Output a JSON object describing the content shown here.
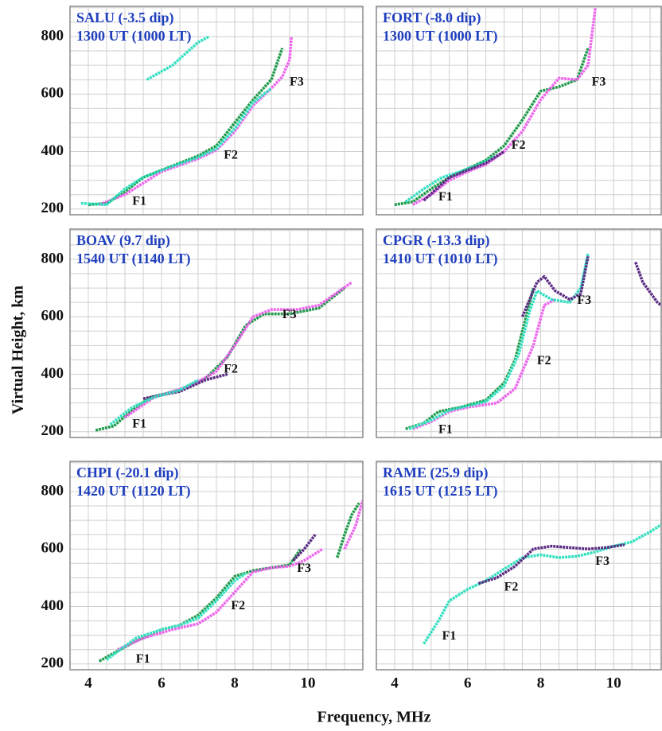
{
  "x_label": "Frequency, MHz",
  "y_label": "Virtual Height, km",
  "axes": {
    "xlim": [
      3.5,
      11.5
    ],
    "ylim": [
      180,
      905
    ],
    "xticks": [
      4,
      6,
      8,
      10
    ],
    "yticks": [
      200,
      400,
      600,
      800
    ],
    "xgrid": [
      3.5,
      4,
      4.5,
      5,
      5.5,
      6,
      6.5,
      7,
      7.5,
      8,
      8.5,
      9,
      9.5,
      10,
      10.5,
      11,
      11.5
    ],
    "ygrid": [
      200,
      250,
      300,
      350,
      400,
      450,
      500,
      550,
      600,
      650,
      700,
      750,
      800,
      850,
      900
    ]
  },
  "chart_data": [
    {
      "type": "line",
      "title": "SALU (-3.5 dip)",
      "subtitle": "1300 UT (1000 LT)",
      "series": [
        {
          "color": "#1f9a4a",
          "x": [
            4.0,
            4.5,
            5.0,
            5.5,
            6.0,
            6.5,
            7.0,
            7.5,
            8.0,
            8.5,
            9.0,
            9.3
          ],
          "values": [
            215,
            220,
            260,
            310,
            335,
            360,
            385,
            420,
            500,
            580,
            650,
            760
          ]
        },
        {
          "color": "#ee66ee",
          "x": [
            4.3,
            5,
            6,
            7,
            7.5,
            8,
            8.5,
            9,
            9.3,
            9.5,
            9.55
          ],
          "values": [
            215,
            250,
            330,
            375,
            405,
            470,
            560,
            620,
            660,
            720,
            800
          ]
        },
        {
          "color": "#33e0c0",
          "x": [
            3.8,
            4.5,
            5,
            5.5,
            6,
            7,
            7.5,
            8,
            8.5,
            9
          ],
          "values": [
            220,
            215,
            270,
            310,
            335,
            380,
            410,
            480,
            570,
            620
          ]
        },
        {
          "color": "#33e0c0",
          "x": [
            5.6,
            6.3,
            7,
            7.3
          ],
          "values": [
            650,
            700,
            780,
            800
          ]
        }
      ],
      "annotations": [
        {
          "text": "F1",
          "x": 5.2,
          "y": 225
        },
        {
          "text": "F2",
          "x": 7.7,
          "y": 385
        },
        {
          "text": "F3",
          "x": 9.5,
          "y": 640
        }
      ]
    },
    {
      "type": "line",
      "title": "FORT (-8.0 dip)",
      "subtitle": "1300 UT (1000 LT)",
      "series": [
        {
          "color": "#1f9a4a",
          "x": [
            4.0,
            4.5,
            5,
            5.5,
            6,
            6.5,
            7,
            7.5,
            8,
            8.5,
            9,
            9.3
          ],
          "values": [
            215,
            225,
            270,
            310,
            340,
            370,
            420,
            510,
            610,
            625,
            650,
            760
          ]
        },
        {
          "color": "#ee66ee",
          "x": [
            4.5,
            5,
            5.5,
            6,
            6.5,
            7,
            7.5,
            8,
            8.5,
            9,
            9.3,
            9.5
          ],
          "values": [
            215,
            250,
            300,
            330,
            355,
            400,
            470,
            580,
            655,
            650,
            700,
            900
          ]
        },
        {
          "color": "#33e0c0",
          "x": [
            4.3,
            4.8,
            5.3,
            5.8,
            6.3,
            6.8
          ],
          "values": [
            225,
            270,
            310,
            330,
            355,
            385
          ]
        },
        {
          "color": "#5b2c83",
          "x": [
            4.8,
            5.5,
            6.5,
            7.0
          ],
          "values": [
            230,
            310,
            360,
            400
          ]
        }
      ],
      "annotations": [
        {
          "text": "F1",
          "x": 5.2,
          "y": 240
        },
        {
          "text": "F2",
          "x": 7.2,
          "y": 420
        },
        {
          "text": "F3",
          "x": 9.4,
          "y": 640
        }
      ]
    },
    {
      "type": "line",
      "title": "BOAV (9.7 dip)",
      "subtitle": "1540 UT (1140 LT)",
      "series": [
        {
          "color": "#1f9a4a",
          "x": [
            4.2,
            4.7,
            5.2,
            5.7,
            6.5,
            7.2,
            7.8,
            8.3,
            8.8,
            9.5,
            10.3,
            11
          ],
          "values": [
            205,
            220,
            275,
            320,
            345,
            385,
            460,
            570,
            610,
            610,
            630,
            700
          ]
        },
        {
          "color": "#ee66ee",
          "x": [
            5,
            5.8,
            6.8,
            7.5,
            8,
            8.5,
            9,
            9.7,
            10.3,
            11.2
          ],
          "values": [
            250,
            320,
            360,
            410,
            500,
            600,
            625,
            625,
            640,
            720
          ]
        },
        {
          "color": "#5b2c83",
          "x": [
            5.5,
            6.5,
            7.2,
            7.8
          ],
          "values": [
            315,
            340,
            380,
            400
          ]
        },
        {
          "color": "#33e0c0",
          "x": [
            4.6,
            5.2,
            5.8,
            6.5,
            7.0
          ],
          "values": [
            225,
            285,
            320,
            345,
            380
          ]
        }
      ],
      "annotations": [
        {
          "text": "F1",
          "x": 5.2,
          "y": 225
        },
        {
          "text": "F2",
          "x": 7.7,
          "y": 415
        },
        {
          "text": "F3",
          "x": 9.3,
          "y": 605
        }
      ]
    },
    {
      "type": "line",
      "title": "CPGR (-13.3 dip)",
      "subtitle": "1410 UT (1010 LT)",
      "series": [
        {
          "color": "#1f9a4a",
          "x": [
            4.3,
            4.8,
            5.2,
            5.8,
            6.5,
            7,
            7.3,
            7.6,
            7.8
          ],
          "values": [
            210,
            230,
            270,
            285,
            310,
            370,
            450,
            600,
            700
          ]
        },
        {
          "color": "#ee66ee",
          "x": [
            4.5,
            5,
            5.5,
            6,
            6.8,
            7.3,
            7.8,
            8.1,
            8.4
          ],
          "values": [
            210,
            235,
            270,
            285,
            300,
            350,
            500,
            640,
            660
          ]
        },
        {
          "color": "#33e0c0",
          "x": [
            4.4,
            5,
            5.5,
            6,
            6.5,
            7,
            7.4,
            7.7,
            7.9,
            8.3,
            8.8,
            9.1,
            9.3
          ],
          "values": [
            210,
            240,
            275,
            290,
            305,
            360,
            470,
            620,
            690,
            660,
            650,
            700,
            820
          ]
        },
        {
          "color": "#5b2c83",
          "x": [
            7.5,
            7.9,
            8.1,
            8.4,
            8.8,
            9.1,
            9.3
          ],
          "values": [
            600,
            720,
            740,
            690,
            660,
            680,
            810
          ]
        },
        {
          "color": "#5b2c83",
          "x": [
            10.6,
            10.8,
            11.2,
            11.5
          ],
          "values": [
            790,
            720,
            650,
            620
          ]
        }
      ],
      "annotations": [
        {
          "text": "F1",
          "x": 5.2,
          "y": 205
        },
        {
          "text": "F2",
          "x": 7.9,
          "y": 445
        },
        {
          "text": "F3",
          "x": 9.0,
          "y": 655
        }
      ]
    },
    {
      "type": "line",
      "title": "CHPI (-20.1 dip)",
      "subtitle": "1420 UT (1120 LT)",
      "series": [
        {
          "color": "#1f9a4a",
          "x": [
            4.3,
            4.8,
            5.3,
            6,
            6.5,
            7,
            7.5,
            8,
            8.5,
            9,
            9.5,
            9.8
          ],
          "values": [
            210,
            245,
            280,
            320,
            335,
            370,
            430,
            505,
            525,
            535,
            545,
            600
          ]
        },
        {
          "color": "#ee66ee",
          "x": [
            4.8,
            5.5,
            6.3,
            7,
            7.5,
            8,
            8.5,
            9,
            9.5,
            9.9,
            10.4
          ],
          "values": [
            250,
            290,
            320,
            340,
            380,
            450,
            520,
            535,
            540,
            560,
            600
          ]
        },
        {
          "color": "#5b2c83",
          "x": [
            9.6,
            9.9,
            10.2
          ],
          "values": [
            560,
            600,
            650
          ]
        },
        {
          "color": "#33e0c0",
          "x": [
            4.5,
            5.3,
            6,
            6.5,
            7,
            7.5,
            8,
            8.3
          ],
          "values": [
            215,
            290,
            320,
            335,
            360,
            420,
            490,
            515
          ]
        },
        {
          "color": "#1f9a4a",
          "x": [
            10.8,
            11,
            11.2,
            11.4
          ],
          "values": [
            570,
            650,
            720,
            760
          ]
        },
        {
          "color": "#ee66ee",
          "x": [
            11.0,
            11.3,
            11.5
          ],
          "values": [
            600,
            680,
            770
          ]
        }
      ],
      "annotations": [
        {
          "text": "F1",
          "x": 5.3,
          "y": 215
        },
        {
          "text": "F2",
          "x": 7.9,
          "y": 400
        },
        {
          "text": "F3",
          "x": 9.7,
          "y": 530
        }
      ]
    },
    {
      "type": "line",
      "title": "RAME (25.9 dip)",
      "subtitle": "1615 UT (1215 LT)",
      "series": [
        {
          "color": "#33e0c0",
          "x": [
            4.8,
            5.2,
            5.5,
            6,
            6.5,
            7,
            7.5,
            8,
            8.5,
            9,
            9.5,
            10,
            10.5,
            11,
            11.5
          ],
          "values": [
            270,
            350,
            420,
            460,
            490,
            530,
            570,
            580,
            570,
            575,
            590,
            610,
            625,
            660,
            700
          ]
        },
        {
          "color": "#5b2c83",
          "x": [
            6.3,
            6.8,
            7.3,
            7.8,
            8.3,
            8.8,
            9.3,
            9.8,
            10.3
          ],
          "values": [
            480,
            500,
            540,
            600,
            610,
            605,
            600,
            605,
            615
          ]
        }
      ],
      "annotations": [
        {
          "text": "F1",
          "x": 5.3,
          "y": 295
        },
        {
          "text": "F2",
          "x": 7.0,
          "y": 465
        },
        {
          "text": "F3",
          "x": 9.5,
          "y": 555
        }
      ]
    }
  ]
}
